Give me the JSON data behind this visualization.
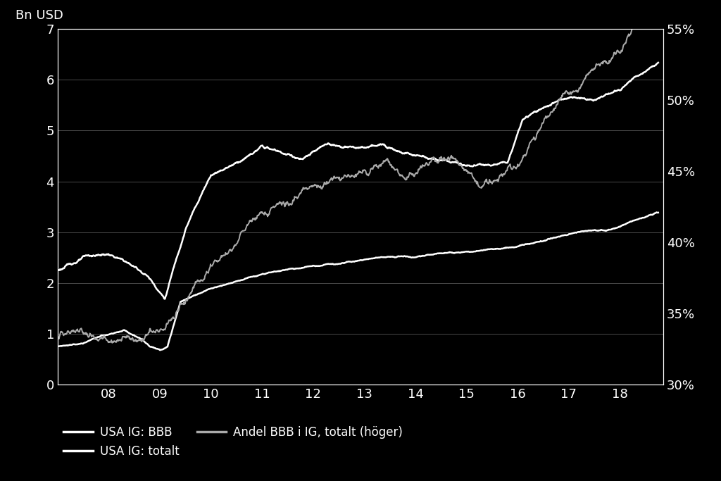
{
  "background_color": "#000000",
  "text_color": "#ffffff",
  "grid_color": "#555555",
  "line1_color": "#ffffff",
  "line2_color": "#ffffff",
  "line3_color": "#aaaaaa",
  "line1_label": "USA IG: BBB",
  "line2_label": "USA IG: totalt",
  "line3_label": "Andel BBB i IG, totalt (höger)",
  "bn_usd_label": "Bn USD",
  "ylim_left": [
    0,
    7
  ],
  "ylim_right": [
    0.3,
    0.55
  ],
  "yticks_left": [
    0,
    1,
    2,
    3,
    4,
    5,
    6,
    7
  ],
  "yticks_right": [
    0.3,
    0.35,
    0.4,
    0.45,
    0.5,
    0.55
  ],
  "xtick_labels": [
    "08",
    "09",
    "10",
    "11",
    "12",
    "13",
    "14",
    "15",
    "16",
    "17",
    "18"
  ],
  "tick_fontsize": 13,
  "legend_fontsize": 12,
  "bn_usd_fontsize": 13,
  "linewidth1": 1.8,
  "linewidth2": 1.8,
  "linewidth3": 1.4
}
